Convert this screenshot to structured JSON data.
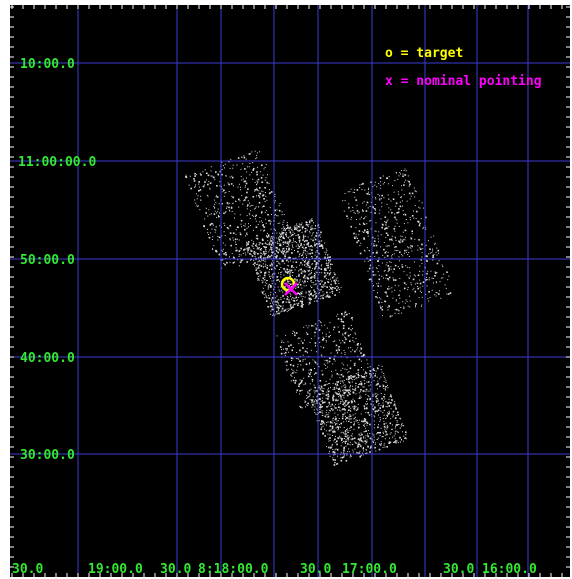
{
  "colors": {
    "background": "#000000",
    "grid": "#3b3bd6",
    "label": "#33e833",
    "target": "#ffff00",
    "pointing": "#ff00ff",
    "events": "#d8d8d8"
  },
  "legend": {
    "target": "o = target",
    "pointing": "x = nominal pointing"
  },
  "dec_labels": [
    "10:00.0",
    "11:00:00.0",
    "50:00.0",
    "40:00.0",
    "30:00.0"
  ],
  "ra_labels": [
    "30.0",
    "19:00.0",
    "30.0",
    "8:18:00.0",
    "30.0",
    "17:00.0",
    "30.0",
    "16:00.0"
  ]
}
